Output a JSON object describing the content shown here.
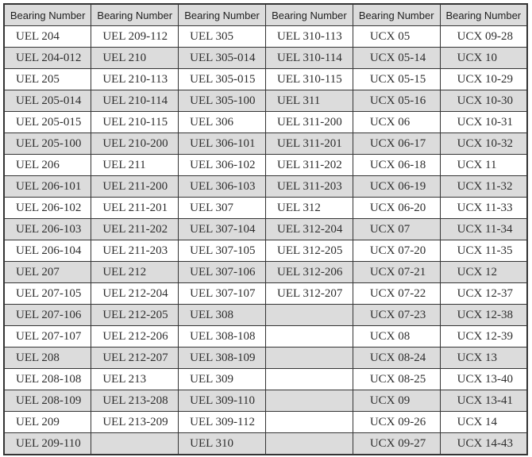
{
  "table": {
    "name": "bearing-number-table",
    "headers": [
      "Bearing Number",
      "Bearing Number",
      "Bearing Number",
      "Bearing Number",
      "Bearing Number",
      "Bearing Number"
    ],
    "rows": [
      [
        "UEL 204",
        "UEL 209-112",
        "UEL 305",
        "UEL 310-113",
        "UCX 05",
        "UCX 09-28"
      ],
      [
        "UEL 204-012",
        "UEL 210",
        "UEL 305-014",
        "UEL 310-114",
        "UCX 05-14",
        "UCX 10"
      ],
      [
        "UEL 205",
        "UEL 210-113",
        "UEL 305-015",
        "UEL 310-115",
        "UCX 05-15",
        "UCX 10-29"
      ],
      [
        "UEL 205-014",
        "UEL 210-114",
        "UEL 305-100",
        "UEL 311",
        "UCX 05-16",
        "UCX 10-30"
      ],
      [
        "UEL 205-015",
        "UEL 210-115",
        "UEL 306",
        "UEL 311-200",
        "UCX 06",
        "UCX 10-31"
      ],
      [
        "UEL 205-100",
        "UEL 210-200",
        "UEL 306-101",
        "UEL 311-201",
        "UCX 06-17",
        "UCX 10-32"
      ],
      [
        "UEL 206",
        "UEL 211",
        "UEL 306-102",
        "UEL 311-202",
        "UCX 06-18",
        "UCX 11"
      ],
      [
        "UEL 206-101",
        "UEL 211-200",
        "UEL 306-103",
        "UEL 311-203",
        "UCX 06-19",
        "UCX 11-32"
      ],
      [
        "UEL 206-102",
        "UEL 211-201",
        "UEL 307",
        "UEL 312",
        "UCX 06-20",
        "UCX 11-33"
      ],
      [
        "UEL 206-103",
        "UEL 211-202",
        "UEL 307-104",
        "UEL 312-204",
        "UCX 07",
        "UCX 11-34"
      ],
      [
        "UEL 206-104",
        "UEL 211-203",
        "UEL 307-105",
        "UEL 312-205",
        "UCX 07-20",
        "UCX 11-35"
      ],
      [
        "UEL 207",
        "UEL 212",
        "UEL 307-106",
        "UEL 312-206",
        "UCX 07-21",
        "UCX 12"
      ],
      [
        "UEL 207-105",
        "UEL 212-204",
        "UEL 307-107",
        "UEL 312-207",
        "UCX 07-22",
        "UCX 12-37"
      ],
      [
        "UEL 207-106",
        "UEL 212-205",
        "UEL 308",
        "",
        "UCX 07-23",
        "UCX 12-38"
      ],
      [
        "UEL 207-107",
        "UEL 212-206",
        "UEL 308-108",
        "",
        "UCX 08",
        "UCX 12-39"
      ],
      [
        "UEL 208",
        "UEL 212-207",
        "UEL 308-109",
        "",
        "UCX 08-24",
        "UCX 13"
      ],
      [
        "UEL 208-108",
        "UEL 213",
        "UEL 309",
        "",
        "UCX 08-25",
        "UCX 13-40"
      ],
      [
        "UEL 208-109",
        "UEL 213-208",
        "UEL 309-110",
        "",
        "UCX 09",
        "UCX 13-41"
      ],
      [
        "UEL 209",
        "UEL 213-209",
        "UEL 309-112",
        "",
        "UCX 09-26",
        "UCX 14"
      ],
      [
        "UEL 209-110",
        "",
        "UEL 310",
        "",
        "UCX 09-27",
        "UCX 14-43"
      ]
    ],
    "colors": {
      "header_bg": "#dcdcdc",
      "stripe_bg": "#dcdcdc",
      "border": "#343434",
      "text": "#2e2e2e"
    }
  }
}
